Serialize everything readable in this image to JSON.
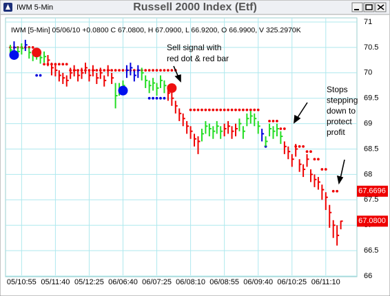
{
  "window": {
    "title": "IWM 5-Min"
  },
  "chart_data": {
    "type": "ohlc",
    "title": "Russell 2000 Index (Etf)",
    "info": "IWM [5-Min] 05/06/10  +0.0800 C 67.0800, H 67.0900, L 66.9200, O 66.9900, V 325.2970K",
    "categories": [
      null,
      null,
      null,
      "05/10:55",
      null,
      null,
      null,
      null,
      null,
      null,
      null,
      null,
      "05/11:40",
      null,
      null,
      null,
      null,
      null,
      null,
      null,
      null,
      "05/12:25",
      null,
      null,
      null,
      null,
      null,
      null,
      null,
      null,
      "06/06:40",
      null,
      null,
      null,
      null,
      null,
      null,
      null,
      null,
      "06/07:25",
      null,
      null,
      null,
      null,
      null,
      null,
      null,
      null,
      "06/08:10",
      null,
      null,
      null,
      null,
      null,
      null,
      null,
      null,
      "06/08:55",
      null,
      null,
      null,
      null,
      null,
      null,
      null,
      null,
      "06/09:40",
      null,
      null,
      null,
      null,
      null,
      null,
      null,
      null,
      "06/10:25",
      null,
      null,
      null,
      null,
      null,
      null,
      null,
      null,
      "06/11:10",
      null,
      null,
      null,
      null
    ],
    "high": [
      70.55,
      70.62,
      70.52,
      70.58,
      70.65,
      70.5,
      70.45,
      70.48,
      70.4,
      70.42,
      70.35,
      70.2,
      70.15,
      70.05,
      70.0,
      69.95,
      70.1,
      70.15,
      70.05,
      70.1,
      70.2,
      70.05,
      70.15,
      70.0,
      70.1,
      69.95,
      70.15,
      70.0,
      69.8,
      69.8,
      69.85,
      70.15,
      70.2,
      70.05,
      70.15,
      70.1,
      69.95,
      69.85,
      69.9,
      69.8,
      69.95,
      69.85,
      69.75,
      69.75,
      69.45,
      69.3,
      69.2,
      69.05,
      68.95,
      68.8,
      68.75,
      68.9,
      69.05,
      69.0,
      68.95,
      69.05,
      68.95,
      69.0,
      69.05,
      68.95,
      69.0,
      69.1,
      68.95,
      69.2,
      69.25,
      69.2,
      69.05,
      68.9,
      68.75,
      69.0,
      68.95,
      69.0,
      68.85,
      68.65,
      68.55,
      68.4,
      68.6,
      68.3,
      68.2,
      68.4,
      68.1,
      68.0,
      67.95,
      67.8,
      67.65,
      67.4,
      67.1,
      67.0,
      67.09
    ],
    "low": [
      70.33,
      70.38,
      70.3,
      70.36,
      70.43,
      70.28,
      70.23,
      70.26,
      70.18,
      70.2,
      70.13,
      69.95,
      69.93,
      69.83,
      69.78,
      69.73,
      69.88,
      69.93,
      69.83,
      69.88,
      69.98,
      69.83,
      69.93,
      69.78,
      69.88,
      69.73,
      69.93,
      69.78,
      69.3,
      69.55,
      69.6,
      69.9,
      69.95,
      69.83,
      69.9,
      69.85,
      69.7,
      69.6,
      69.65,
      69.55,
      69.7,
      69.6,
      69.45,
      69.35,
      69.2,
      69.05,
      68.95,
      68.8,
      68.7,
      68.55,
      68.4,
      68.65,
      68.8,
      68.75,
      68.7,
      68.8,
      68.7,
      68.75,
      68.8,
      68.7,
      68.75,
      68.85,
      68.7,
      68.95,
      69.0,
      68.95,
      68.8,
      68.65,
      68.55,
      68.75,
      68.7,
      68.75,
      68.6,
      68.4,
      68.3,
      68.15,
      68.35,
      68.05,
      67.95,
      68.15,
      67.85,
      67.75,
      67.7,
      67.5,
      67.3,
      66.95,
      66.75,
      66.6,
      66.92
    ],
    "close": [
      70.45,
      70.5,
      70.42,
      70.48,
      70.55,
      70.4,
      70.35,
      70.38,
      70.3,
      70.32,
      70.25,
      70.1,
      70.05,
      69.95,
      69.9,
      69.85,
      70.0,
      70.05,
      69.95,
      70.0,
      70.1,
      69.95,
      70.05,
      69.9,
      70.0,
      69.85,
      70.05,
      69.9,
      69.55,
      69.7,
      69.75,
      70.05,
      70.1,
      69.95,
      70.05,
      70.0,
      69.85,
      69.75,
      69.8,
      69.7,
      69.85,
      69.75,
      69.6,
      69.5,
      69.35,
      69.2,
      69.1,
      68.95,
      68.85,
      68.7,
      68.65,
      68.8,
      68.95,
      68.9,
      68.85,
      68.95,
      68.85,
      68.9,
      68.95,
      68.85,
      68.9,
      69.0,
      68.85,
      69.1,
      69.15,
      69.1,
      68.95,
      68.8,
      68.65,
      68.9,
      68.85,
      68.9,
      68.75,
      68.55,
      68.45,
      68.3,
      68.5,
      68.2,
      68.1,
      68.3,
      68.0,
      67.9,
      67.85,
      67.7,
      67.55,
      67.25,
      67.0,
      66.8,
      67.08
    ],
    "bar_colors": [
      "#2d2",
      "#00d",
      "#2d2",
      "#2d2",
      "#00d",
      "#2d2",
      "#2d2",
      "#2d2",
      "#2d2",
      "#2d2",
      "#e00",
      "#e00",
      "#e00",
      "#e00",
      "#e00",
      "#e00",
      "#e00",
      "#e00",
      "#e00",
      "#e00",
      "#e00",
      "#e00",
      "#e00",
      "#e00",
      "#e00",
      "#e00",
      "#e00",
      "#e00",
      "#2d2",
      "#2d2",
      "#2d2",
      "#00d",
      "#00d",
      "#00d",
      "#00d",
      "#2d2",
      "#2d2",
      "#2d2",
      "#2d2",
      "#2d2",
      "#2d2",
      "#2d2",
      "#e00",
      "#e00",
      "#e00",
      "#e00",
      "#e00",
      "#e00",
      "#e00",
      "#e00",
      "#e00",
      "#2d2",
      "#2d2",
      "#2d2",
      "#2d2",
      "#2d2",
      "#2d2",
      "#e00",
      "#e00",
      "#e00",
      "#e00",
      "#2d2",
      "#2d2",
      "#2d2",
      "#2d2",
      "#2d2",
      "#2d2",
      "#00d",
      "#2d2",
      "#2d2",
      "#2d2",
      "#2d2",
      "#2d2",
      "#e00",
      "#e00",
      "#e00",
      "#e00",
      "#e00",
      "#e00",
      "#e00",
      "#e00",
      "#e00",
      "#e00",
      "#e00",
      "#e00",
      "#e00",
      "#e00",
      "#e00",
      "#e00"
    ],
    "stop_dots_above": {
      "color": "#e00",
      "values": [
        70.5,
        70.5,
        70.5,
        70.5,
        70.5,
        70.5,
        70.5,
        null,
        null,
        70.17,
        70.17,
        70.17,
        70.17,
        70.17,
        70.17,
        70.17,
        70.05,
        70.05,
        70.05,
        70.05,
        70.05,
        70.05,
        70.05,
        70.05,
        70.05,
        70.05,
        70.05,
        70.05,
        70.05,
        70.05,
        70.05,
        70.05,
        70.05,
        70.05,
        70.05,
        70.05,
        70.05,
        70.05,
        70.05,
        70.05,
        70.05,
        70.05,
        70.05,
        70.05,
        70.05,
        null,
        null,
        null,
        69.27,
        69.27,
        69.27,
        69.27,
        69.27,
        69.27,
        69.27,
        69.27,
        69.27,
        69.27,
        69.27,
        69.27,
        69.27,
        69.27,
        69.27,
        69.27,
        69.27,
        69.27,
        69.27,
        null,
        null,
        69.05,
        69.05,
        69.05,
        68.9,
        68.9,
        null,
        null,
        68.55,
        68.55,
        68.55,
        68.45,
        68.45,
        68.3,
        68.3,
        68.1,
        68.1,
        null,
        67.67,
        67.67,
        null
      ]
    },
    "stop_dots_below": {
      "color": "#00d",
      "values": [
        null,
        null,
        null,
        null,
        null,
        null,
        null,
        69.95,
        69.95,
        null,
        null,
        null,
        null,
        null,
        null,
        null,
        null,
        null,
        null,
        null,
        null,
        null,
        null,
        null,
        null,
        null,
        null,
        null,
        null,
        null,
        null,
        null,
        null,
        null,
        null,
        null,
        null,
        69.5,
        69.5,
        69.5,
        69.5,
        69.5,
        null,
        null,
        null,
        null,
        null,
        null,
        null,
        null,
        null,
        null,
        null,
        null,
        null,
        null,
        null,
        null,
        null,
        null,
        null,
        null,
        null,
        null,
        null,
        null,
        null,
        null,
        68.55,
        null,
        null,
        null,
        null,
        null,
        null,
        null,
        null,
        null,
        null,
        null,
        null,
        null,
        null,
        null,
        null,
        null,
        null,
        null,
        null
      ]
    },
    "buy_signals": {
      "color": "#0010ee",
      "values": [
        null,
        70.35,
        null,
        null,
        null,
        null,
        null,
        null,
        null,
        null,
        null,
        null,
        null,
        null,
        null,
        null,
        null,
        null,
        null,
        null,
        null,
        null,
        null,
        null,
        null,
        null,
        null,
        null,
        null,
        null,
        69.65,
        null,
        null,
        null,
        null,
        null,
        null,
        null,
        null,
        null,
        null,
        null,
        null,
        null,
        null,
        null,
        null,
        null,
        null,
        null,
        null,
        null,
        null,
        null,
        null,
        null,
        null,
        null,
        null,
        null,
        null,
        null,
        null,
        null,
        null,
        null,
        null,
        null,
        null,
        null,
        null,
        null,
        null,
        null,
        null,
        null,
        null,
        null,
        null,
        null,
        null,
        null,
        null,
        null,
        null,
        null,
        null,
        null,
        null
      ]
    },
    "sell_signals": {
      "color": "#ee1010",
      "values": [
        null,
        null,
        null,
        null,
        null,
        null,
        null,
        70.4,
        null,
        null,
        null,
        null,
        null,
        null,
        null,
        null,
        null,
        null,
        null,
        null,
        null,
        null,
        null,
        null,
        null,
        null,
        null,
        null,
        null,
        null,
        null,
        null,
        null,
        null,
        null,
        null,
        null,
        null,
        null,
        null,
        null,
        null,
        null,
        69.7,
        null,
        null,
        null,
        null,
        null,
        null,
        null,
        null,
        null,
        null,
        null,
        null,
        null,
        null,
        null,
        null,
        null,
        null,
        null,
        null,
        null,
        null,
        null,
        null,
        null,
        null,
        null,
        null,
        null,
        null,
        null,
        null,
        null,
        null,
        null,
        null,
        null,
        null,
        null,
        null,
        null,
        null,
        null,
        null,
        null
      ]
    },
    "ylim": [
      66,
      71
    ],
    "yticks": [
      71,
      70.5,
      70,
      69.5,
      69,
      68.5,
      68,
      67.5,
      67,
      66.5,
      66
    ],
    "price_labels": [
      67.6696,
      {
        "value": 67.08,
        "label": "67.0800"
      }
    ],
    "grid": true,
    "annotations": [
      {
        "lines": [
          "Sell signal with",
          "red dot & red bar"
        ]
      },
      {
        "lines": [
          "Stops",
          "stepping",
          "down to",
          "protect",
          "profit"
        ]
      }
    ]
  }
}
